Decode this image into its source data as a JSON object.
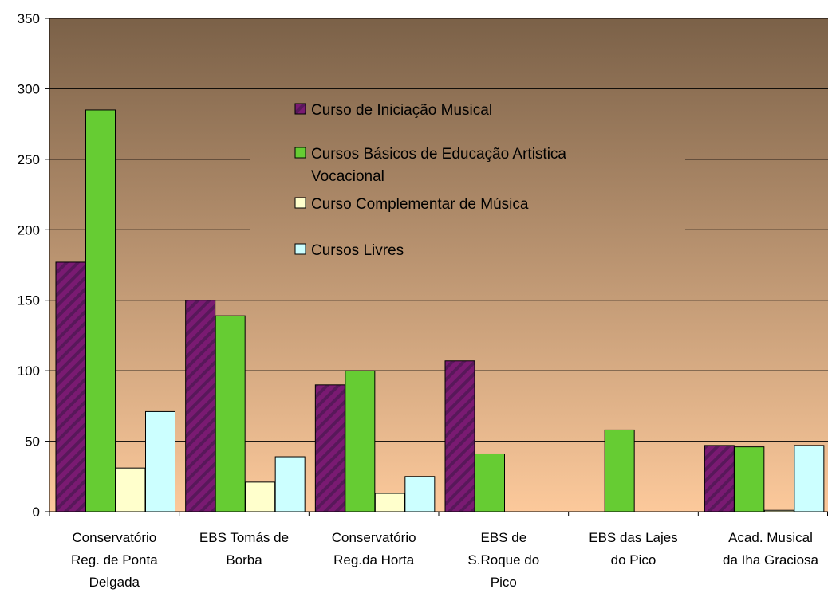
{
  "chart_data": {
    "type": "bar",
    "title": "",
    "xlabel": "",
    "ylabel": "",
    "ylim": [
      0,
      350
    ],
    "yticks": [
      "0",
      "50",
      "100",
      "150",
      "200",
      "250",
      "300",
      "350"
    ],
    "grid": true,
    "legend_position": "top-center",
    "categories": [
      [
        "Conservatório",
        "Reg. de Ponta",
        "Delgada"
      ],
      [
        "EBS Tomás de",
        "Borba"
      ],
      [
        "Conservatório",
        "Reg.da Horta"
      ],
      [
        "EBS de",
        "S.Roque do",
        "Pico"
      ],
      [
        "EBS das Lajes",
        "do Pico"
      ],
      [
        "Acad. Musical",
        "da Iha Graciosa"
      ]
    ],
    "series": [
      {
        "name": "Curso de Iniciação Musical",
        "legend_lines": [
          "Curso de Iniciação Musical"
        ],
        "color": "#7a1a72",
        "pattern": "diagonal-stripes",
        "values": [
          177,
          150,
          90,
          107,
          0,
          47
        ]
      },
      {
        "name": "Cursos Básicos de Educação Artistica Vocacional",
        "legend_lines": [
          "Cursos Básicos de Educação Artistica",
          "Vocacional"
        ],
        "color": "#66cc33",
        "pattern": "solid",
        "values": [
          285,
          139,
          100,
          41,
          58,
          46
        ]
      },
      {
        "name": "Curso Complementar de Música",
        "legend_lines": [
          "Curso Complementar de Música"
        ],
        "color": "#ffffcc",
        "pattern": "solid",
        "values": [
          31,
          21,
          13,
          0,
          0,
          1
        ]
      },
      {
        "name": "Cursos Livres",
        "legend_lines": [
          "Cursos Livres"
        ],
        "color": "#ccffff",
        "pattern": "solid",
        "values": [
          71,
          39,
          25,
          0,
          0,
          47
        ]
      }
    ],
    "colors": {
      "plot_top": "#7b6148",
      "plot_bottom": "#fcc99b",
      "gridline": "#000000",
      "stripe": "#58185a"
    }
  }
}
